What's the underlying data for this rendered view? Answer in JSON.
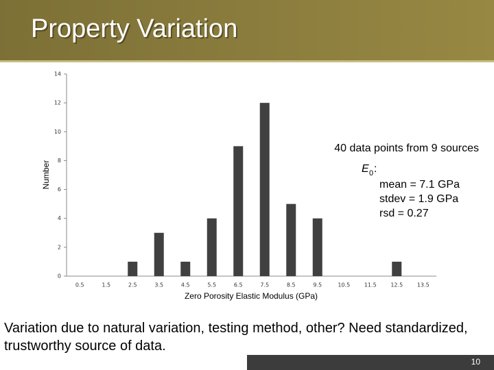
{
  "header": {
    "title": "Property Variation"
  },
  "chart_data": {
    "type": "bar",
    "categories": [
      "0.5",
      "1.5",
      "2.5",
      "3.5",
      "4.5",
      "5.5",
      "6.5",
      "7.5",
      "8.5",
      "9.5",
      "10.5",
      "11.5",
      "12.5",
      "13.5"
    ],
    "values": [
      0,
      0,
      1,
      3,
      1,
      4,
      9,
      12,
      5,
      4,
      0,
      0,
      1,
      0
    ],
    "color": "#404040",
    "ylim": [
      0,
      14
    ],
    "yticks": [
      0,
      2,
      4,
      6,
      8,
      10,
      12,
      14
    ],
    "xlabel": "Zero Porosity Elastic Modulus (GPa)",
    "ylabel": "Number",
    "annotations": {
      "note": "40 data points from 9 sources",
      "symbol": "E",
      "subscript": "0",
      "suffix": ":",
      "stats": [
        "mean =  7.1 GPa",
        "stdev = 1.9 GPa",
        "rsd = 0.27"
      ]
    }
  },
  "body_text": "Variation due to natural variation, testing method, other?  Need standardized, trustworthy source of data.",
  "footer": {
    "page_number": "10"
  }
}
